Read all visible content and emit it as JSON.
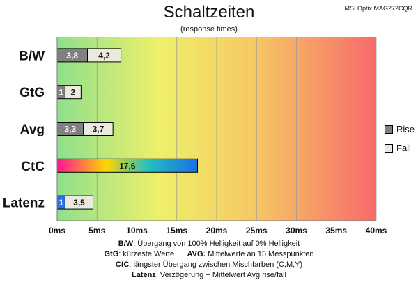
{
  "header": {
    "title": "Schaltzeiten",
    "subtitle": "(response times)",
    "model": "MSI Optix MAG272CQR"
  },
  "legend": {
    "items": [
      {
        "label": "Rise",
        "color": "#808080"
      },
      {
        "label": "Fall",
        "color": "#ece9df"
      }
    ]
  },
  "notes": [
    {
      "key": "B/W",
      "text": ":  Übergang von 100% Helligkeit auf 0% Helligkeit"
    },
    {
      "key": "GtG",
      "text": ": kürzeste  Werte",
      "key2": "AVG:",
      "text2": " Mittelwerte  an 15 Messpunkten"
    },
    {
      "key": "CtC",
      "text": ": längster Übergang  zwischen Mischfarben (C,M,Y)"
    },
    {
      "key": "Latenz",
      "text": ": Verzögerung  + Mittelwert Avg rise/fall"
    }
  ],
  "chart_data": {
    "type": "bar",
    "orientation": "horizontal",
    "stacked": true,
    "categories": [
      "B/W",
      "GtG",
      "Avg",
      "CtC",
      "Latenz"
    ],
    "series": [
      {
        "name": "Rise",
        "values": [
          3.8,
          1,
          3.3,
          17.6,
          1
        ]
      },
      {
        "name": "Fall",
        "values": [
          4.2,
          2,
          3.7,
          null,
          3.5
        ]
      }
    ],
    "xlim": [
      0,
      40
    ],
    "xticks": [
      0,
      5,
      10,
      15,
      20,
      25,
      30,
      35,
      40
    ],
    "tick_suffix": "ms",
    "grid": true,
    "legend_position": "right",
    "colors": {
      "rise": "#808080",
      "fall": "#ece9df",
      "latency_rise": "#2e6ee6",
      "background_gradient": [
        "#8fe08c",
        "#eef06a",
        "#f6c864",
        "#f86a6a"
      ],
      "ctc_gradient": [
        "#ff1493",
        "#ffd700",
        "#20c0c0",
        "#1e6ee8"
      ]
    }
  }
}
